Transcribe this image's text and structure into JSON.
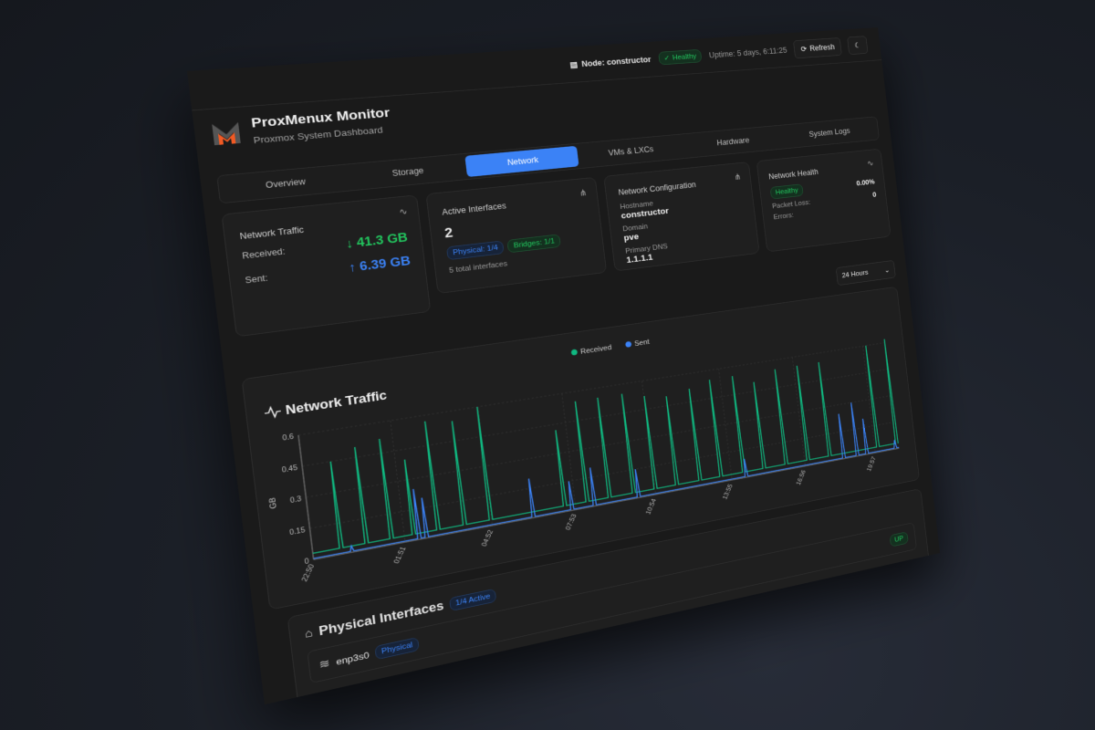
{
  "topbar": {
    "node_label": "Node: constructor",
    "status": "Healthy",
    "uptime": "Uptime: 5 days, 6:11:25",
    "refresh_label": "Refresh"
  },
  "header": {
    "title": "ProxMenux Monitor",
    "subtitle": "Proxmox System Dashboard"
  },
  "tabs": [
    {
      "label": "Overview"
    },
    {
      "label": "Storage"
    },
    {
      "label": "Network",
      "active": true
    },
    {
      "label": "VMs & LXCs"
    },
    {
      "label": "Hardware"
    },
    {
      "label": "System Logs"
    }
  ],
  "traffic_card": {
    "title": "Network Traffic",
    "received_label": "Received:",
    "received_value": "↓ 41.3 GB",
    "sent_label": "Sent:",
    "sent_value": "↑ 6.39 GB"
  },
  "interfaces_card": {
    "title": "Active Interfaces",
    "count": "2",
    "physical_badge": "Physical: 1/4",
    "bridges_badge": "Bridges: 1/1",
    "total": "5 total interfaces"
  },
  "config_card": {
    "title": "Network Configuration",
    "hostname_label": "Hostname",
    "hostname": "constructor",
    "domain_label": "Domain",
    "domain": "pve",
    "dns_label": "Primary DNS",
    "dns": "1.1.1.1"
  },
  "health_card": {
    "title": "Network Health",
    "status": "Healthy",
    "packet_loss_label": "Packet Loss:",
    "packet_loss": "0.00%",
    "errors_label": "Errors:",
    "errors": "0"
  },
  "time_range": {
    "selected": "24 Hours"
  },
  "chart_data": {
    "type": "line",
    "title": "Network Traffic",
    "ylabel": "GB",
    "ylim": [
      0,
      0.6
    ],
    "yticks": [
      "0",
      "0.15",
      "0.3",
      "0.45",
      "0.6"
    ],
    "xticks": [
      "22:50",
      "01:51",
      "04:52",
      "07:53",
      "10:54",
      "13:55",
      "16:56",
      "19:57"
    ],
    "grid": true,
    "legend": "top-center",
    "series": [
      {
        "name": "Received",
        "color": "#10b981",
        "baseline": 0.03,
        "spikes": [
          [
            "23:45",
            0.45
          ],
          [
            "00:35",
            0.5
          ],
          [
            "01:25",
            0.52
          ],
          [
            "02:10",
            0.4
          ],
          [
            "03:00",
            0.57
          ],
          [
            "03:55",
            0.55
          ],
          [
            "04:50",
            0.6
          ],
          [
            "07:30",
            0.42
          ],
          [
            "08:20",
            0.55
          ],
          [
            "09:10",
            0.55
          ],
          [
            "10:05",
            0.55
          ],
          [
            "10:55",
            0.52
          ],
          [
            "11:45",
            0.5
          ],
          [
            "12:40",
            0.52
          ],
          [
            "13:30",
            0.55
          ],
          [
            "14:25",
            0.55
          ],
          [
            "15:15",
            0.5
          ],
          [
            "16:10",
            0.55
          ],
          [
            "17:05",
            0.55
          ],
          [
            "18:00",
            0.55
          ],
          [
            "20:05",
            0.6
          ],
          [
            "20:55",
            0.62
          ]
        ]
      },
      {
        "name": "Sent",
        "color": "#3b82f6",
        "baseline": 0.005,
        "spikes": [
          [
            "00:05",
            0.03
          ],
          [
            "02:20",
            0.25
          ],
          [
            "02:35",
            0.2
          ],
          [
            "06:20",
            0.2
          ],
          [
            "07:45",
            0.15
          ],
          [
            "08:35",
            0.2
          ],
          [
            "10:15",
            0.15
          ],
          [
            "14:30",
            0.1
          ],
          [
            "18:35",
            0.25
          ],
          [
            "19:10",
            0.3
          ],
          [
            "19:35",
            0.2
          ],
          [
            "20:50",
            0.05
          ]
        ]
      }
    ]
  },
  "physical": {
    "title": "Physical Interfaces",
    "active_badge": "1/4 Active",
    "iface_name": "enp3s0",
    "iface_type": "Physical",
    "iface_status": "UP"
  }
}
